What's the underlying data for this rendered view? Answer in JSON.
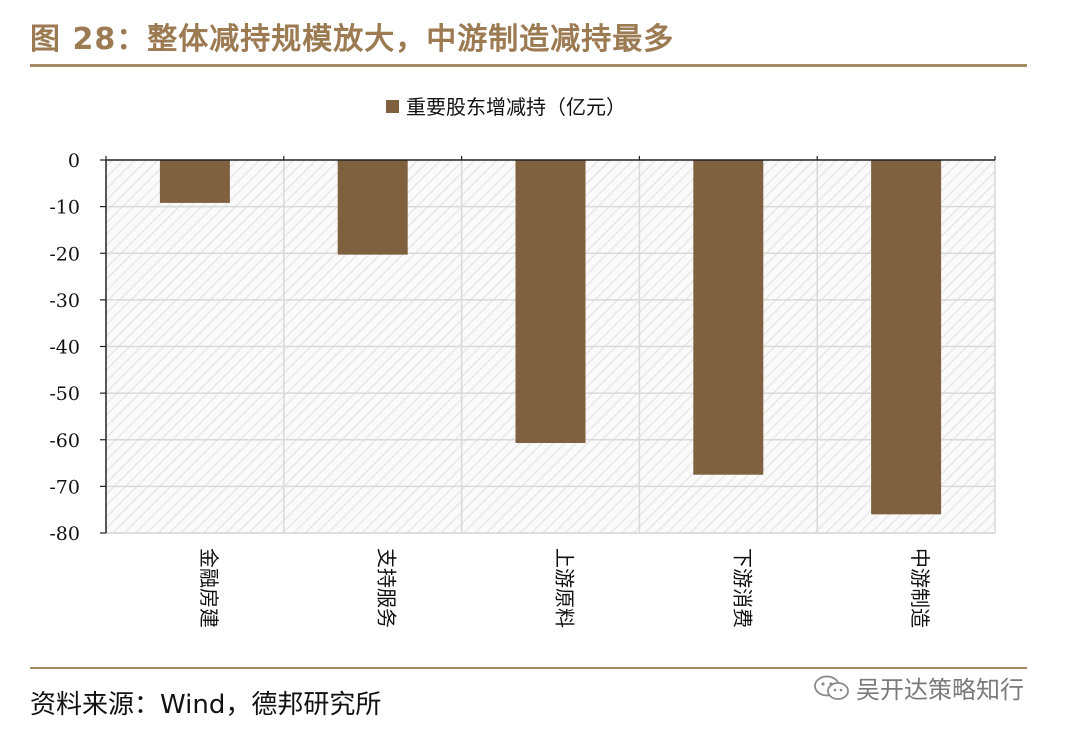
{
  "figure": {
    "title": "图 28：整体减持规模放大，中游制造减持最多",
    "source": "资料来源：Wind，德邦研究所",
    "watermark": "吴开达策略知行",
    "watermark_icon": "wechat-icon"
  },
  "colors": {
    "accent": "#9c7a52",
    "rule": "#a68a66",
    "bar": "#7f6140",
    "grid": "#d9d9d9",
    "hatch": "#ededed"
  },
  "chart_data": {
    "type": "bar",
    "categories": [
      "金融房建",
      "支持服务",
      "上游原料",
      "下游消费",
      "中游制造"
    ],
    "series": [
      {
        "name": "重要股东增减持（亿元）",
        "values": [
          -9.2,
          -20.3,
          -60.7,
          -67.5,
          -76.0
        ]
      }
    ],
    "yticks": [
      0,
      -10,
      -20,
      -30,
      -40,
      -50,
      -60,
      -70,
      -80
    ],
    "ylim": [
      -80,
      0
    ],
    "xlabel": "",
    "ylabel": "",
    "legend": "top-center",
    "grid": true,
    "category_label_orientation": "vertical"
  }
}
